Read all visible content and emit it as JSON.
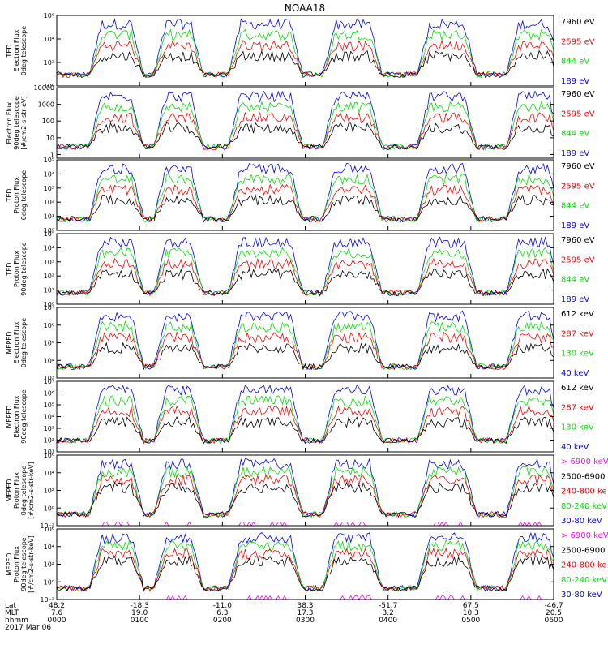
{
  "title": "NOAA18",
  "colors": {
    "black": "#000000",
    "red": "#ff0000",
    "green": "#00e000",
    "blue": "#0000ff",
    "magenta": "#ff00ff"
  },
  "date_label": "2017 Mar 06",
  "footer_rows": [
    "Lat",
    "MLT",
    "hhmm"
  ],
  "chart_data": [
    {
      "type": "line",
      "scale": "log",
      "ylim": [
        1,
        1000000
      ],
      "ylabel": [
        "TED",
        "Electron Flux",
        "0deg telescope"
      ],
      "yticks": [
        {
          "v": 1,
          "l": "10⁰"
        },
        {
          "v": 100,
          "l": "10²"
        },
        {
          "v": 10000,
          "l": "10⁴"
        },
        {
          "v": 1000000,
          "l": "10⁶"
        }
      ],
      "legend": [
        {
          "label": "7960 eV",
          "color": "black"
        },
        {
          "label": "2595 eV",
          "color": "red"
        },
        {
          "label": "844 eV",
          "color": "green"
        },
        {
          "label": "189 eV",
          "color": "blue"
        }
      ]
    },
    {
      "type": "line",
      "scale": "log",
      "ylim": [
        0.6,
        10000
      ],
      "ylabel": [
        "Electron Flux",
        "90deg telescope",
        "[#/cm2-s-str-eV]"
      ],
      "yticks": [
        {
          "v": 1,
          "l": "1"
        },
        {
          "v": 10,
          "l": "10"
        },
        {
          "v": 100,
          "l": "100"
        },
        {
          "v": 1000,
          "l": "1000"
        },
        {
          "v": 10000,
          "l": "10000"
        }
      ],
      "legend": [
        {
          "label": "7960 eV",
          "color": "black"
        },
        {
          "label": "2595 eV",
          "color": "red"
        },
        {
          "label": "844 eV",
          "color": "green"
        },
        {
          "label": "189 eV",
          "color": "blue"
        }
      ]
    },
    {
      "type": "line",
      "scale": "log",
      "ylim": [
        1,
        100000
      ],
      "ylabel": [
        "TED",
        "Proton Flux",
        "0deg telescope"
      ],
      "yticks": [
        {
          "v": 1,
          "l": "10⁰"
        },
        {
          "v": 10,
          "l": "10¹"
        },
        {
          "v": 100,
          "l": "10²"
        },
        {
          "v": 1000,
          "l": "10³"
        },
        {
          "v": 10000,
          "l": "10⁴"
        },
        {
          "v": 100000,
          "l": "10⁵"
        }
      ],
      "legend": [
        {
          "label": "7960 eV",
          "color": "black"
        },
        {
          "label": "2595 eV",
          "color": "red"
        },
        {
          "label": "844 eV",
          "color": "green"
        },
        {
          "label": "189 eV",
          "color": "blue"
        }
      ]
    },
    {
      "type": "line",
      "scale": "log",
      "ylim": [
        1,
        100000
      ],
      "ylabel": [
        "TED",
        "Proton Flux",
        "90deg telescope"
      ],
      "yticks": [
        {
          "v": 1,
          "l": "10⁰"
        },
        {
          "v": 10,
          "l": "10¹"
        },
        {
          "v": 100,
          "l": "10²"
        },
        {
          "v": 1000,
          "l": "10³"
        },
        {
          "v": 10000,
          "l": "10⁴"
        },
        {
          "v": 100000,
          "l": "10⁵"
        }
      ],
      "legend": [
        {
          "label": "7960 eV",
          "color": "black"
        },
        {
          "label": "2595 eV",
          "color": "red"
        },
        {
          "label": "844 eV",
          "color": "green"
        },
        {
          "label": "189 eV",
          "color": "blue"
        }
      ]
    },
    {
      "type": "line",
      "scale": "log",
      "ylim": [
        1000,
        10000000
      ],
      "ylabel": [
        "MEPED",
        "Electron Flux",
        "0deg telescope"
      ],
      "yticks": [
        {
          "v": 1000,
          "l": "10³"
        },
        {
          "v": 10000,
          "l": "10⁴"
        },
        {
          "v": 100000,
          "l": "10⁵"
        },
        {
          "v": 1000000,
          "l": "10⁶"
        },
        {
          "v": 10000000,
          "l": "10⁷"
        }
      ],
      "legend": [
        {
          "label": "612 keV",
          "color": "black"
        },
        {
          "label": "287 keV",
          "color": "red"
        },
        {
          "label": "130 keV",
          "color": "green"
        },
        {
          "label": "40 keV",
          "color": "blue"
        }
      ]
    },
    {
      "type": "line",
      "scale": "log",
      "ylim": [
        10,
        10000000
      ],
      "ylabel": [
        "MEPED",
        "Electron Flux",
        "90deg telescope"
      ],
      "yticks": [
        {
          "v": 10,
          "l": "10¹"
        },
        {
          "v": 100,
          "l": "10²"
        },
        {
          "v": 1000,
          "l": "10³"
        },
        {
          "v": 10000,
          "l": "10⁴"
        },
        {
          "v": 100000,
          "l": "10⁵"
        },
        {
          "v": 1000000,
          "l": "10⁶"
        },
        {
          "v": 10000000,
          "l": "10⁷"
        }
      ],
      "legend": [
        {
          "label": "612 keV",
          "color": "black"
        },
        {
          "label": "287 keV",
          "color": "red"
        },
        {
          "label": "130 keV",
          "color": "green"
        },
        {
          "label": "40 keV",
          "color": "blue"
        }
      ]
    },
    {
      "type": "line",
      "scale": "log",
      "ylim": [
        0.01,
        1000000
      ],
      "ylabel": [
        "MEPED",
        "Proton Flux",
        "0deg telescope",
        "[#/cm2-s-str-keV]"
      ],
      "yticks": [
        {
          "v": 0.01,
          "l": "10⁻²"
        },
        {
          "v": 1,
          "l": "10⁰"
        },
        {
          "v": 100,
          "l": "10²"
        },
        {
          "v": 10000,
          "l": "10⁴"
        },
        {
          "v": 1000000,
          "l": "10⁶"
        }
      ],
      "legend": [
        {
          "label": "> 6900 keV",
          "color": "magenta"
        },
        {
          "label": "2500-6900",
          "color": "black"
        },
        {
          "label": "240-800 ke",
          "color": "red"
        },
        {
          "label": "80-240 keV",
          "color": "green"
        },
        {
          "label": "30-80 keV",
          "color": "blue"
        }
      ]
    },
    {
      "type": "line",
      "scale": "log",
      "ylim": [
        0.01,
        1000000
      ],
      "ylabel": [
        "MEPED",
        "Proton Flux",
        "90deg telescope",
        "[#/cm2-s-str-keV]"
      ],
      "yticks": [
        {
          "v": 0.01,
          "l": "10⁻²"
        },
        {
          "v": 1,
          "l": "10⁰"
        },
        {
          "v": 100,
          "l": "10²"
        },
        {
          "v": 10000,
          "l": "10⁴"
        },
        {
          "v": 1000000,
          "l": "10⁶"
        }
      ],
      "legend": [
        {
          "label": "> 6900 keV",
          "color": "magenta"
        },
        {
          "label": "2500-6900",
          "color": "black"
        },
        {
          "label": "240-800 ke",
          "color": "red"
        },
        {
          "label": "80-240 keV",
          "color": "green"
        },
        {
          "label": "30-80 keV",
          "color": "blue"
        }
      ]
    }
  ],
  "x_axis": {
    "ticks": [
      {
        "hhmm": "0000",
        "lat": "48.2",
        "mlt": "7.6"
      },
      {
        "hhmm": "0100",
        "lat": "-18.3",
        "mlt": "19.0"
      },
      {
        "hhmm": "0200",
        "lat": "-11.0",
        "mlt": "6.3"
      },
      {
        "hhmm": "0300",
        "lat": "38.3",
        "mlt": "17.3"
      },
      {
        "hhmm": "0400",
        "lat": "-51.7",
        "mlt": "3.2"
      },
      {
        "hhmm": "0500",
        "lat": "67.5",
        "mlt": "10.3"
      },
      {
        "hhmm": "0600",
        "lat": "-46.7",
        "mlt": "20.5"
      }
    ]
  }
}
